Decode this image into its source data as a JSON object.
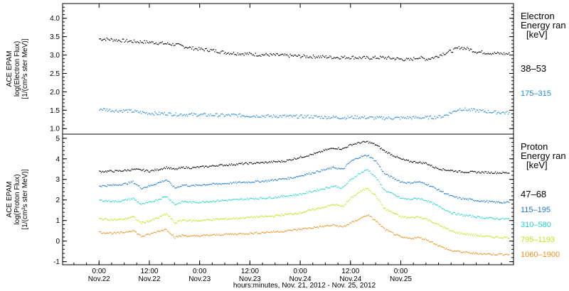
{
  "chart_data": [
    {
      "type": "scatter",
      "ylabel": "ACE EPAM\nlog(Electron Flux)\n[1/(cm²s ster MeV)]",
      "ylim": [
        0.85,
        4.4
      ],
      "yticks": [
        1.0,
        1.5,
        2.0,
        2.5,
        3.0,
        3.5,
        4.0
      ],
      "ytick_labels": [
        "1.0",
        "1.5",
        "2.0",
        "2.5",
        "3.0",
        "3.5",
        "4.0"
      ],
      "legend_title": [
        "Electron",
        "Energy ran",
        "[keV]"
      ],
      "series": [
        {
          "name": "38–53",
          "color": "#000000",
          "x": [
            0,
            2,
            4,
            6,
            8,
            10,
            12,
            14,
            16,
            18,
            20,
            22,
            24,
            26,
            28,
            30,
            32,
            34,
            36,
            38,
            40,
            42,
            44,
            46,
            48,
            50,
            52,
            54,
            56,
            58,
            60,
            62,
            64,
            66,
            68,
            70,
            72,
            74,
            76,
            78,
            80,
            82,
            84,
            86,
            88,
            90,
            92,
            94,
            96,
            98
          ],
          "y": [
            3.45,
            3.44,
            3.42,
            3.4,
            3.38,
            3.37,
            3.36,
            3.34,
            3.32,
            3.3,
            3.25,
            3.2,
            3.17,
            3.15,
            3.12,
            3.08,
            3.06,
            3.05,
            3.04,
            3.02,
            3.02,
            3.01,
            3.0,
            2.99,
            2.98,
            2.97,
            2.97,
            2.96,
            2.95,
            2.95,
            2.95,
            2.94,
            2.93,
            2.94,
            2.94,
            2.92,
            2.9,
            2.88,
            2.95,
            2.9,
            2.95,
            3.05,
            3.12,
            3.22,
            3.18,
            3.1,
            3.08,
            3.06,
            3.05,
            3.04
          ]
        },
        {
          "name": "175–315",
          "color": "#1E8BE0",
          "x": [
            0,
            2,
            4,
            6,
            8,
            10,
            12,
            14,
            16,
            18,
            20,
            22,
            24,
            26,
            28,
            30,
            32,
            34,
            36,
            38,
            40,
            42,
            44,
            46,
            48,
            50,
            52,
            54,
            56,
            58,
            60,
            62,
            64,
            66,
            68,
            70,
            72,
            74,
            76,
            78,
            80,
            82,
            84,
            86,
            88,
            90,
            92,
            94,
            96,
            98
          ],
          "y": [
            1.55,
            1.52,
            1.5,
            1.5,
            1.48,
            1.45,
            1.43,
            1.42,
            1.42,
            1.4,
            1.4,
            1.39,
            1.39,
            1.38,
            1.38,
            1.37,
            1.38,
            1.37,
            1.36,
            1.36,
            1.35,
            1.35,
            1.35,
            1.34,
            1.34,
            1.34,
            1.33,
            1.32,
            1.32,
            1.31,
            1.32,
            1.32,
            1.31,
            1.3,
            1.3,
            1.3,
            1.3,
            1.31,
            1.31,
            1.31,
            1.32,
            1.35,
            1.45,
            1.55,
            1.52,
            1.5,
            1.48,
            1.46,
            1.45,
            1.44
          ]
        }
      ]
    },
    {
      "type": "scatter",
      "ylabel": "ACE EPAM\nlog(Proton Flux)\n[1/(cm²s ster MeV)]",
      "ylim": [
        -1.15,
        5.2
      ],
      "yticks": [
        -1,
        0,
        1,
        2,
        3,
        4,
        5
      ],
      "ytick_labels": [
        "-1",
        "0",
        "1",
        "2",
        "3",
        "4",
        "5"
      ],
      "legend_title": [
        "Proton",
        "Energy ran",
        "[keV]"
      ],
      "series": [
        {
          "name": "47–68",
          "color": "#000000",
          "x": [
            0,
            2,
            4,
            6,
            8,
            10,
            12,
            14,
            16,
            18,
            20,
            22,
            24,
            26,
            28,
            30,
            32,
            34,
            36,
            38,
            40,
            42,
            44,
            46,
            48,
            50,
            52,
            54,
            56,
            58,
            60,
            62,
            64,
            66,
            68,
            70,
            72,
            74,
            76,
            78,
            80,
            82,
            84,
            86,
            88,
            90,
            92,
            94,
            96,
            98
          ],
          "y": [
            3.4,
            3.42,
            3.42,
            3.45,
            3.5,
            3.48,
            3.42,
            3.5,
            3.6,
            3.5,
            3.6,
            3.58,
            3.62,
            3.65,
            3.7,
            3.72,
            3.75,
            3.78,
            3.8,
            3.82,
            3.85,
            3.88,
            3.9,
            4.0,
            4.1,
            4.2,
            4.3,
            4.45,
            4.55,
            4.5,
            4.7,
            4.8,
            4.85,
            4.7,
            4.4,
            4.2,
            4.0,
            3.9,
            3.85,
            3.8,
            3.6,
            3.5,
            3.45,
            3.4,
            3.38,
            3.37,
            3.36,
            3.35,
            3.34,
            3.34
          ]
        },
        {
          "name": "115–195",
          "color": "#1E78D2",
          "x": [
            0,
            2,
            4,
            6,
            8,
            10,
            12,
            14,
            16,
            18,
            20,
            22,
            24,
            26,
            28,
            30,
            32,
            34,
            36,
            38,
            40,
            42,
            44,
            46,
            48,
            50,
            52,
            54,
            56,
            58,
            60,
            62,
            64,
            66,
            68,
            70,
            72,
            74,
            76,
            78,
            80,
            82,
            84,
            86,
            88,
            90,
            92,
            94,
            96,
            98
          ],
          "y": [
            2.7,
            2.72,
            2.75,
            2.8,
            2.9,
            2.6,
            2.7,
            2.85,
            3.0,
            2.6,
            2.75,
            2.7,
            2.75,
            2.78,
            2.8,
            2.82,
            2.85,
            2.88,
            2.9,
            2.92,
            2.95,
            3.0,
            3.05,
            3.1,
            3.2,
            3.3,
            3.4,
            3.5,
            3.6,
            3.5,
            3.9,
            4.1,
            4.2,
            3.9,
            3.3,
            3.1,
            2.9,
            2.85,
            2.9,
            2.8,
            2.6,
            2.4,
            2.2,
            2.1,
            2.05,
            2.0,
            1.95,
            1.92,
            1.9,
            1.9
          ]
        },
        {
          "name": "310–580",
          "color": "#26D4D0",
          "x": [
            0,
            2,
            4,
            6,
            8,
            10,
            12,
            14,
            16,
            18,
            20,
            22,
            24,
            26,
            28,
            30,
            32,
            34,
            36,
            38,
            40,
            42,
            44,
            46,
            48,
            50,
            52,
            54,
            56,
            58,
            60,
            62,
            64,
            66,
            68,
            70,
            72,
            74,
            76,
            78,
            80,
            82,
            84,
            86,
            88,
            90,
            92,
            94,
            96,
            98
          ],
          "y": [
            2.0,
            1.98,
            1.95,
            2.0,
            2.1,
            1.8,
            1.9,
            2.05,
            2.2,
            1.8,
            1.95,
            1.9,
            1.92,
            1.95,
            1.98,
            2.0,
            2.02,
            2.05,
            2.08,
            2.1,
            2.12,
            2.15,
            2.2,
            2.25,
            2.3,
            2.4,
            2.5,
            2.6,
            2.7,
            2.6,
            3.0,
            3.3,
            3.5,
            3.1,
            2.5,
            2.3,
            2.1,
            2.05,
            2.1,
            2.0,
            1.8,
            1.6,
            1.4,
            1.3,
            1.25,
            1.2,
            1.15,
            1.12,
            1.1,
            1.1
          ]
        },
        {
          "name": "795–1193",
          "color": "#C4E31C",
          "x": [
            0,
            2,
            4,
            6,
            8,
            10,
            12,
            14,
            16,
            18,
            20,
            22,
            24,
            26,
            28,
            30,
            32,
            34,
            36,
            38,
            40,
            42,
            44,
            46,
            48,
            50,
            52,
            54,
            56,
            58,
            60,
            62,
            64,
            66,
            68,
            70,
            72,
            74,
            76,
            78,
            80,
            82,
            84,
            86,
            88,
            90,
            92,
            94,
            96,
            98
          ],
          "y": [
            1.1,
            1.08,
            1.05,
            1.1,
            1.2,
            0.9,
            1.0,
            1.15,
            1.35,
            0.9,
            1.05,
            1.0,
            1.02,
            1.05,
            1.08,
            1.1,
            1.12,
            1.15,
            1.18,
            1.2,
            1.22,
            1.25,
            1.3,
            1.35,
            1.4,
            1.5,
            1.6,
            1.7,
            1.8,
            1.7,
            2.1,
            2.4,
            2.6,
            2.2,
            1.6,
            1.4,
            1.2,
            1.15,
            1.2,
            1.1,
            0.9,
            0.7,
            0.5,
            0.4,
            0.35,
            0.3,
            0.25,
            0.22,
            0.2,
            0.2
          ]
        },
        {
          "name": "1060–1900",
          "color": "#E8921E",
          "x": [
            0,
            2,
            4,
            6,
            8,
            10,
            12,
            14,
            16,
            18,
            20,
            22,
            24,
            26,
            28,
            30,
            32,
            34,
            36,
            38,
            40,
            42,
            44,
            46,
            48,
            50,
            52,
            54,
            56,
            58,
            60,
            62,
            64,
            66,
            68,
            70,
            72,
            74,
            76,
            78,
            80,
            82,
            84,
            86,
            88,
            90,
            92,
            94,
            96,
            98
          ],
          "y": [
            0.45,
            0.42,
            0.4,
            0.45,
            0.55,
            0.25,
            0.35,
            0.5,
            0.6,
            0.2,
            0.3,
            0.25,
            0.28,
            0.3,
            0.32,
            0.35,
            0.36,
            0.38,
            0.4,
            0.42,
            0.45,
            0.48,
            0.5,
            0.55,
            0.6,
            0.65,
            0.7,
            0.75,
            0.8,
            0.7,
            0.9,
            1.1,
            1.3,
            1.0,
            0.6,
            0.4,
            0.2,
            0.15,
            0.2,
            0.1,
            -0.1,
            -0.3,
            -0.45,
            -0.5,
            -0.55,
            -0.58,
            -0.6,
            -0.62,
            -0.62,
            -0.63
          ]
        }
      ]
    }
  ],
  "x_axis": {
    "range_hours": [
      -8.7,
      98.9
    ],
    "ticks": [
      {
        "h": 0,
        "top": "0:00",
        "bottom": "Nov.22"
      },
      {
        "h": 12,
        "top": "12:00",
        "bottom": "Nov.22"
      },
      {
        "h": 24,
        "top": "0:00",
        "bottom": "Nov.23"
      },
      {
        "h": 36,
        "top": "12:00",
        "bottom": "Nov.23"
      },
      {
        "h": 48,
        "top": "0:00",
        "bottom": "Nov.24"
      },
      {
        "h": 60,
        "top": "12:00",
        "bottom": "Nov.24"
      },
      {
        "h": 72,
        "top": "0:00",
        "bottom": "Nov.25"
      }
    ],
    "label": "hours:minutes, Nov. 21, 2012 - Nov. 25, 2012"
  }
}
